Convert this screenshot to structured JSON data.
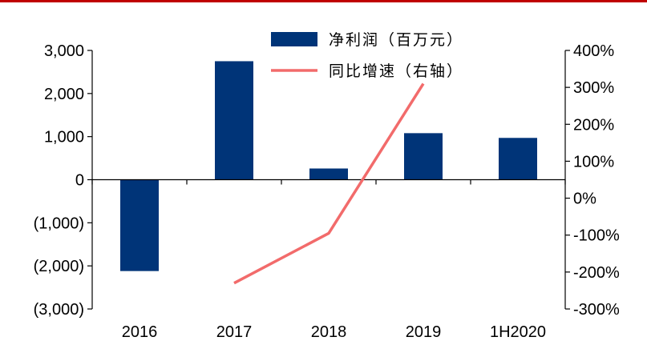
{
  "colors": {
    "bar": "#003478",
    "line": "#F26B6B",
    "axis": "#000000",
    "top_rule": "#C00000"
  },
  "chart_data": {
    "type": "bar",
    "title": "",
    "xlabel": "",
    "ylabel": "",
    "categories": [
      "2016",
      "2017",
      "2018",
      "2019",
      "1H2020"
    ],
    "ylim": [
      -3000,
      3000
    ],
    "y2lim": [
      -300,
      400
    ],
    "y_tick_values": [
      3000,
      2000,
      1000,
      0,
      -1000,
      -2000,
      -3000
    ],
    "y_tick_labels": [
      "3,000",
      "2,000",
      "1,000",
      "0",
      "(1,000)",
      "(2,000)",
      "(3,000)"
    ],
    "y2_tick_values": [
      400,
      300,
      200,
      100,
      0,
      -100,
      -200,
      -300
    ],
    "y2_tick_labels": [
      "400%",
      "300%",
      "200%",
      "100%",
      "0%",
      "-100%",
      "-200%",
      "-300%"
    ],
    "legend_position": "top-center",
    "series": [
      {
        "name": "净利润（百万元）",
        "type": "bar",
        "axis": "left",
        "values": [
          -2120,
          2750,
          260,
          1080,
          970
        ]
      },
      {
        "name": "同比增速（右轴）",
        "type": "line",
        "axis": "right",
        "values": [
          null,
          -230,
          -95,
          310,
          null
        ]
      }
    ]
  }
}
